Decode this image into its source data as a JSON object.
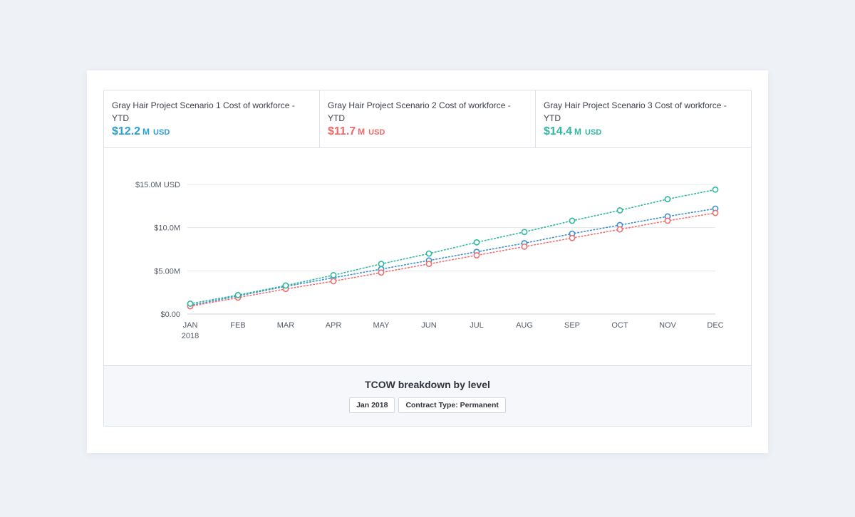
{
  "kpis": [
    {
      "title": "Gray Hair Project Scenario 1 Cost of workforce - YTD",
      "value": "$12.2",
      "unit": "M",
      "currency": "USD",
      "color": "#2a9fd6"
    },
    {
      "title": "Gray Hair Project Scenario 2 Cost of workforce - YTD",
      "value": "$11.7",
      "unit": "M",
      "currency": "USD",
      "color": "#ee6a6a"
    },
    {
      "title": "Gray Hair Project Scenario 3 Cost of workforce - YTD",
      "value": "$14.4",
      "unit": "M",
      "currency": "USD",
      "color": "#2fb9a0"
    }
  ],
  "chart_data": {
    "type": "line",
    "categories": [
      "JAN",
      "FEB",
      "MAR",
      "APR",
      "MAY",
      "JUN",
      "JUL",
      "AUG",
      "SEP",
      "OCT",
      "NOV",
      "DEC"
    ],
    "category_sublabel": "2018",
    "y_ticks": [
      "$0.00",
      "$5.00M",
      "$10.0M",
      "$15.0M USD"
    ],
    "ylim": [
      0,
      15
    ],
    "y_tick_values": [
      0,
      5,
      10,
      15
    ],
    "grid": true,
    "series": [
      {
        "color": "#3b8fd0",
        "values": [
          1.0,
          2.1,
          3.2,
          4.2,
          5.2,
          6.2,
          7.2,
          8.2,
          9.3,
          10.3,
          11.3,
          12.2
        ]
      },
      {
        "color": "#ef6f6f",
        "values": [
          0.9,
          1.9,
          2.9,
          3.8,
          4.8,
          5.8,
          6.8,
          7.8,
          8.8,
          9.8,
          10.8,
          11.7
        ]
      },
      {
        "color": "#2fb7a0",
        "values": [
          1.2,
          2.2,
          3.3,
          4.5,
          5.8,
          7.0,
          8.3,
          9.5,
          10.8,
          12.0,
          13.3,
          14.4
        ]
      }
    ]
  },
  "breakdown": {
    "title": "TCOW breakdown by level",
    "tags": [
      "Jan 2018",
      "Contract Type: Permanent"
    ]
  }
}
